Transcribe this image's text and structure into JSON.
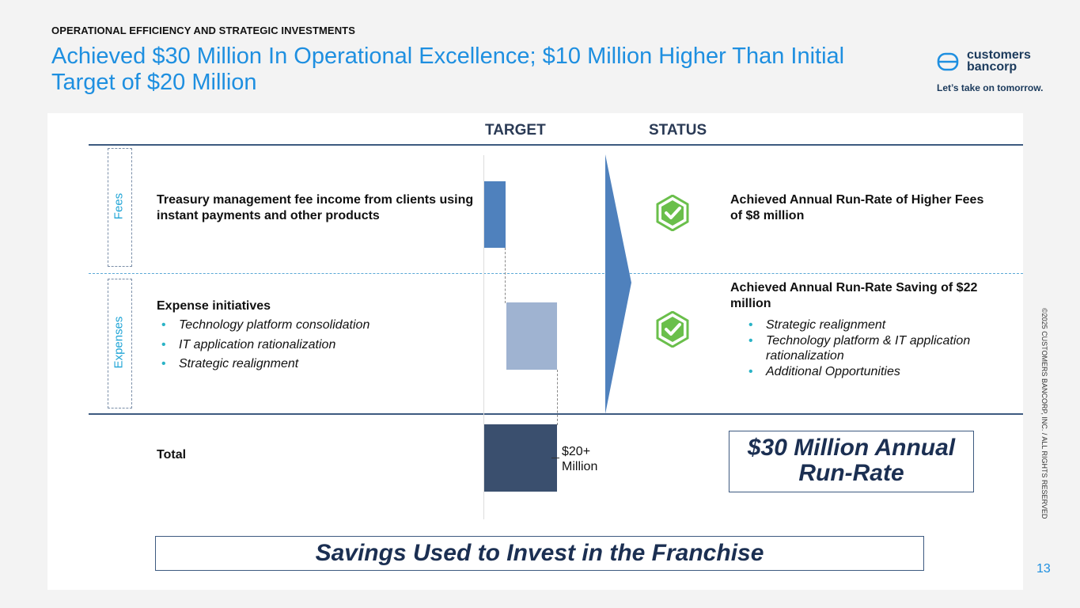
{
  "header": {
    "eyebrow": "OPERATIONAL EFFICIENCY AND STRATEGIC INVESTMENTS",
    "title": "Achieved $30 Million In Operational Excellence; $10 Million Higher Than Initial Target of $20 Million"
  },
  "logo": {
    "line1": "customers",
    "line2": "bancorp",
    "tagline": "Let’s take on tomorrow."
  },
  "columns": {
    "target": "TARGET",
    "status": "STATUS"
  },
  "rows": {
    "fees": {
      "side_label": "Fees",
      "description": "Treasury management fee income from clients using instant payments and other products",
      "status": "Achieved Annual Run-Rate of Higher Fees of $8 million"
    },
    "expenses": {
      "side_label": "Expenses",
      "title": "Expense initiatives",
      "bullets": [
        "Technology platform consolidation",
        "IT application rationalization",
        "Strategic realignment"
      ],
      "status_title": "Achieved Annual Run-Rate Saving of $22 million",
      "status_bullets": [
        "Strategic realignment",
        "Technology platform & IT application rationalization",
        "Additional Opportunities"
      ]
    },
    "total": {
      "label": "Total",
      "target_label_line1": "$20+",
      "target_label_line2": "Million",
      "status_badge": "$30 Million Annual Run-Rate"
    }
  },
  "footer": {
    "statement": "Savings Used to Invest in the Franchise"
  },
  "copyright": "©2025 CUSTOMERS BANCORP, INC. / ALL RIGHTS RESERVED",
  "page_number": "13",
  "colors": {
    "accent": "#1e8fe0",
    "navy": "#1b2f52",
    "fees_bar": "#4f81bd",
    "expenses_bar": "#9fb3d1",
    "total_bar": "#3a4f6e",
    "check": "#6abf4b"
  },
  "icons": {
    "status_check": "hexagon-check-icon"
  }
}
